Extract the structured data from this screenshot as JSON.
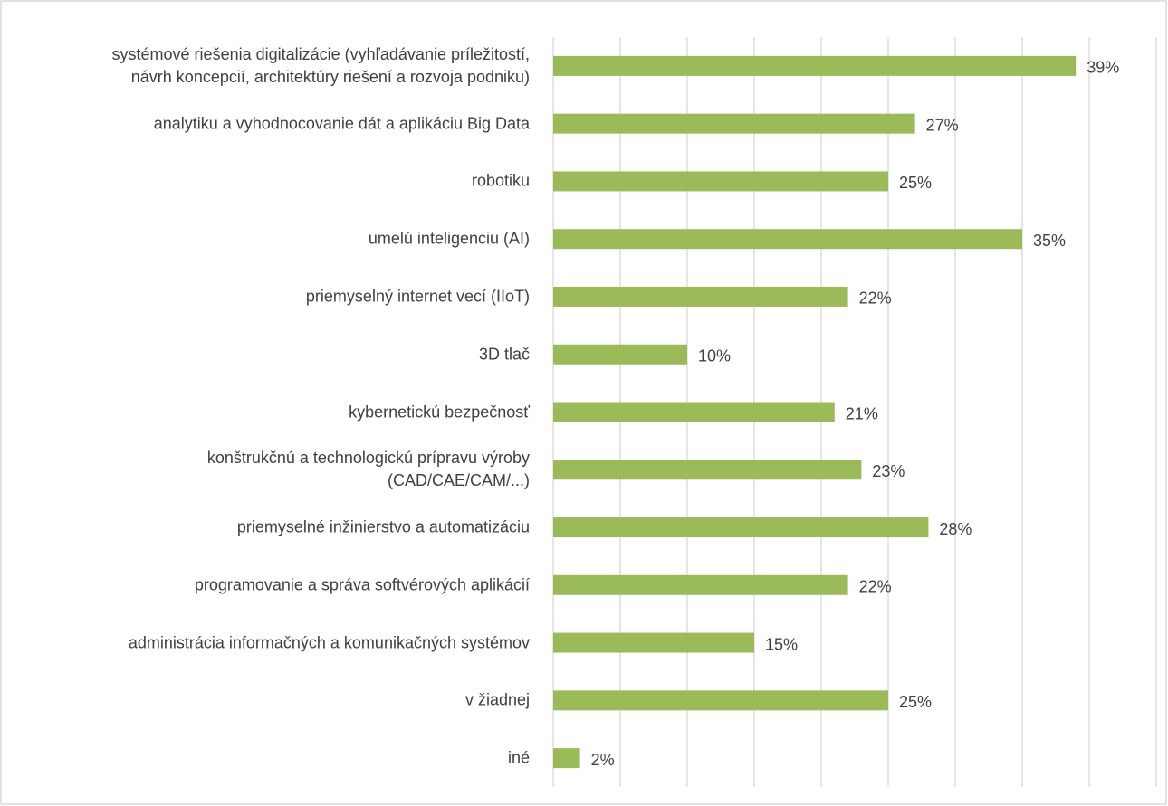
{
  "chart_data": {
    "type": "barh",
    "categories": [
      "systémové riešenia digitalizácie (vyhľadávanie príležitostí,\nnávrh koncepcií, architektúry riešení a rozvoja podniku)",
      "analytiku a vyhodnocovanie dát a aplikáciu Big Data",
      "robotiku",
      "umelú inteligenciu (AI)",
      "priemyselný internet vecí (IIoT)",
      "3D tlač",
      "kybernetickú bezpečnosť",
      "konštrukčnú a technologickú prípravu výroby\n(CAD/CAE/CAM/...)",
      "priemyselné inžinierstvo a automatizáciu",
      "programovanie a správa softvérových aplikácií",
      "administrácia informačných a komunikačných systémov",
      "v žiadnej",
      "iné"
    ],
    "values": [
      39,
      27,
      25,
      35,
      22,
      10,
      21,
      23,
      28,
      22,
      15,
      25,
      2
    ],
    "value_labels": [
      "39%",
      "27%",
      "25%",
      "35%",
      "22%",
      "10%",
      "21%",
      "23%",
      "28%",
      "22%",
      "15%",
      "25%",
      "2%"
    ],
    "color": "#9bbb59",
    "xlim": [
      0,
      45
    ],
    "xticks": [
      0,
      5,
      10,
      15,
      20,
      25,
      30,
      35,
      40,
      45
    ],
    "grid": true
  }
}
